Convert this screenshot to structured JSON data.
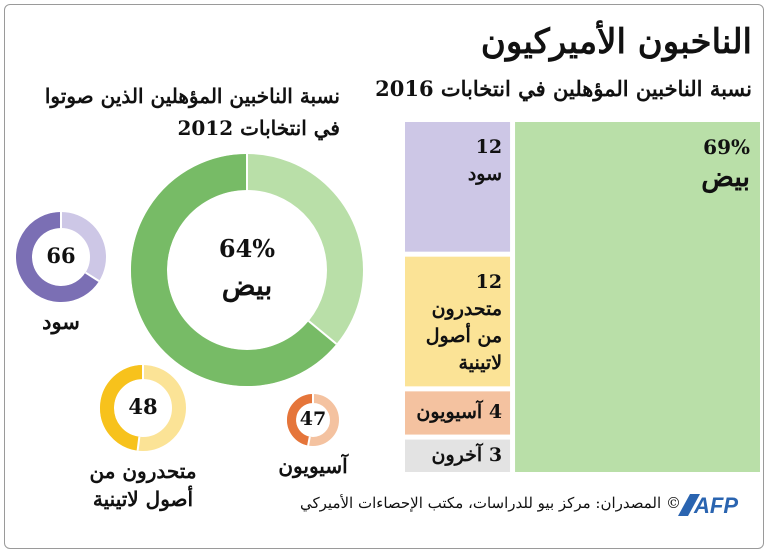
{
  "title": "الناخبون الأميركيون",
  "left_heading": "نسبة الناخبين المؤهلين الذين صوتوا في انتخابات 2012",
  "right_heading": "نسبة الناخبين المؤهلين في انتخابات 2016",
  "colors": {
    "white": "#77bb66",
    "white_light": "#b9dfa8",
    "black": "#7b6fb4",
    "black_light": "#cdc7e6",
    "latino": "#f7c21c",
    "latino_light": "#fbe396",
    "asian": "#e5753a",
    "asian_light": "#f4c2a0",
    "other_light": "#e3e3e3",
    "logo": "#2a64b0"
  },
  "chart_data": [
    {
      "type": "treemap",
      "title": "نسبة الناخبين المؤهلين في انتخابات 2016",
      "unit": "%",
      "items": [
        {
          "name": "بيض",
          "value": 69,
          "value_label": "69%"
        },
        {
          "name": "سود",
          "value": 12,
          "value_label": "12"
        },
        {
          "name": "متحدرون من أصول لاتينية",
          "value": 12,
          "value_label": "12"
        },
        {
          "name": "آسيويون",
          "value": 4,
          "value_label": "4"
        },
        {
          "name": "آخرون",
          "value": 3,
          "value_label": "3"
        }
      ]
    },
    {
      "type": "donut",
      "title": "نسبة الناخبين المؤهلين الذين صوتوا في انتخابات 2012",
      "unit": "%",
      "items": [
        {
          "name": "بيض",
          "value": 64,
          "value_label": "64%"
        },
        {
          "name": "سود",
          "value": 66,
          "value_label": "66"
        },
        {
          "name": "متحدرون من أصول لاتينية",
          "value": 48,
          "value_label": "48"
        },
        {
          "name": "آسيويون",
          "value": 47,
          "value_label": "47"
        }
      ]
    }
  ],
  "footer": {
    "copyright": "©",
    "sources": "المصدران: مركز بيو للدراسات، مكتب الإحصاءات الأميركي",
    "logo": "AFP"
  }
}
